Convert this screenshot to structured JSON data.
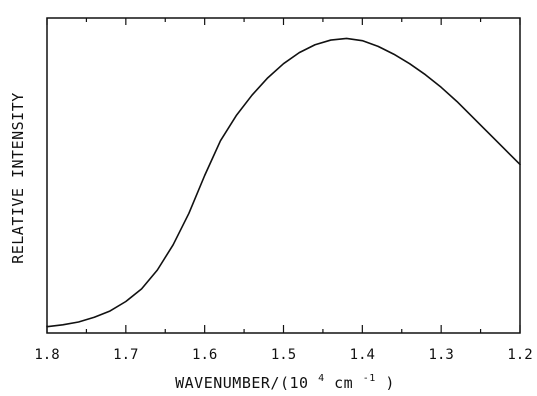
{
  "chart_data": {
    "type": "line",
    "xlabel_parts": {
      "prefix": "WAVENUMBER/(10",
      "power": "4",
      "middle": " cm",
      "unit_power": "-1",
      "suffix": ")"
    },
    "ylabel": "RELATIVE INTENSITY",
    "xlim": [
      1.8,
      1.2
    ],
    "ylim": [
      0,
      1
    ],
    "xticks": [
      {
        "value": 1.8,
        "label": "1.8"
      },
      {
        "value": 1.7,
        "label": "1.7"
      },
      {
        "value": 1.6,
        "label": "1.6"
      },
      {
        "value": 1.5,
        "label": "1.5"
      },
      {
        "value": 1.4,
        "label": "1.4"
      },
      {
        "value": 1.3,
        "label": "1.3"
      },
      {
        "value": 1.2,
        "label": "1.2"
      }
    ],
    "minor_xticks": [
      1.75,
      1.65,
      1.55,
      1.45,
      1.35,
      1.25
    ],
    "grid": false,
    "legend": "none",
    "series": [
      {
        "x": [
          1.8,
          1.78,
          1.76,
          1.74,
          1.72,
          1.7,
          1.68,
          1.66,
          1.64,
          1.62,
          1.6,
          1.58,
          1.56,
          1.54,
          1.52,
          1.5,
          1.48,
          1.46,
          1.44,
          1.42,
          1.4,
          1.38,
          1.36,
          1.34,
          1.32,
          1.3,
          1.28,
          1.26,
          1.24,
          1.22,
          1.2
        ],
        "y": [
          0.02,
          0.026,
          0.035,
          0.05,
          0.07,
          0.1,
          0.14,
          0.2,
          0.28,
          0.38,
          0.5,
          0.61,
          0.69,
          0.755,
          0.81,
          0.855,
          0.89,
          0.915,
          0.93,
          0.935,
          0.928,
          0.91,
          0.885,
          0.855,
          0.82,
          0.78,
          0.735,
          0.685,
          0.635,
          0.585,
          0.535
        ]
      }
    ]
  }
}
